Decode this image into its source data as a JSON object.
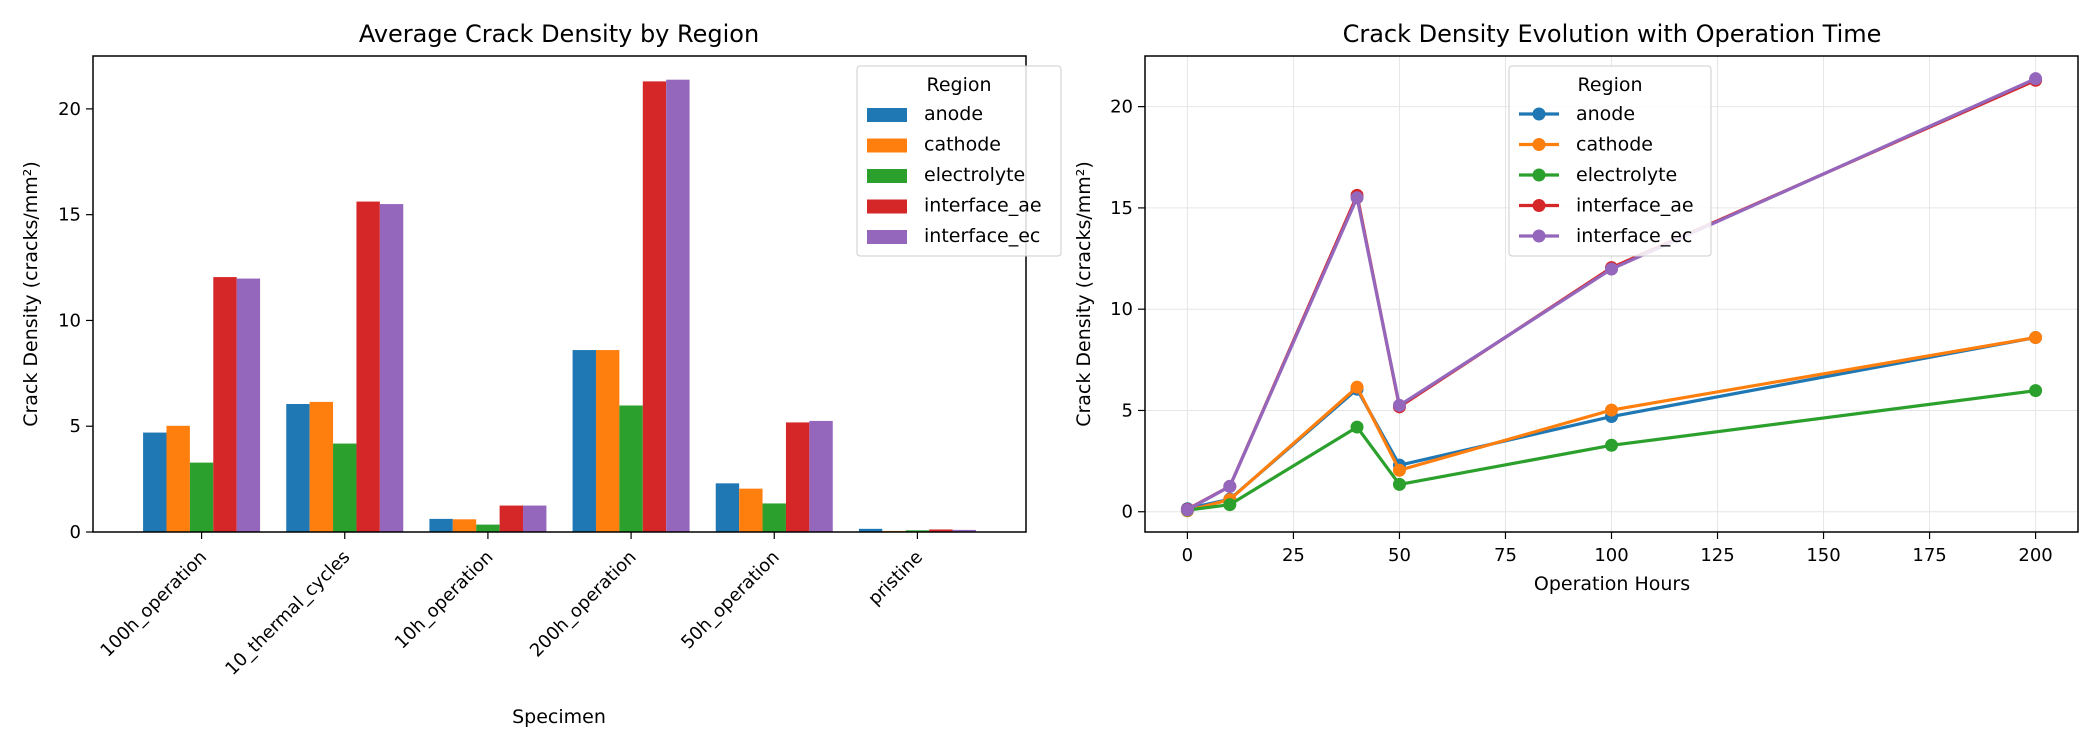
{
  "colors": {
    "anode": "#1f77b4",
    "cathode": "#ff7f0e",
    "electrolyte": "#2ca02c",
    "interface_ae": "#d62728",
    "interface_ec": "#9467bd"
  },
  "chart_data": [
    {
      "type": "bar",
      "title": "Average Crack Density by Region",
      "xlabel": "Specimen",
      "ylabel": "Crack Density (cracks/mm²)",
      "legend_title": "Region",
      "legend_position": "top-right",
      "grid": false,
      "ylim": [
        0,
        22.5
      ],
      "yticks": [
        0,
        5,
        10,
        15,
        20
      ],
      "categories": [
        "100h_operation",
        "10_thermal_cycles",
        "10h_operation",
        "200h_operation",
        "50h_operation",
        "pristine"
      ],
      "series": [
        {
          "name": "anode",
          "values": [
            4.7,
            6.05,
            0.62,
            8.6,
            2.3,
            0.15
          ]
        },
        {
          "name": "cathode",
          "values": [
            5.02,
            6.15,
            0.6,
            8.6,
            2.05,
            0.05
          ]
        },
        {
          "name": "electrolyte",
          "values": [
            3.28,
            4.18,
            0.35,
            5.98,
            1.35,
            0.08
          ]
        },
        {
          "name": "interface_ae",
          "values": [
            12.05,
            15.62,
            1.25,
            21.3,
            5.18,
            0.12
          ]
        },
        {
          "name": "interface_ec",
          "values": [
            11.98,
            15.5,
            1.25,
            21.38,
            5.25,
            0.1
          ]
        }
      ]
    },
    {
      "type": "line",
      "title": "Crack Density Evolution with Operation Time",
      "xlabel": "Operation Hours",
      "ylabel": "Crack Density (cracks/mm²)",
      "legend_title": "Region",
      "legend_position": "top-center",
      "grid": true,
      "xlim": [
        -10,
        210
      ],
      "ylim": [
        -1,
        22.5
      ],
      "xticks": [
        0,
        25,
        50,
        75,
        100,
        125,
        150,
        175,
        200
      ],
      "yticks": [
        0,
        5,
        10,
        15,
        20
      ],
      "x": [
        0,
        10,
        40,
        50,
        100,
        200
      ],
      "series": [
        {
          "name": "anode",
          "values": [
            0.15,
            0.62,
            6.05,
            2.3,
            4.7,
            8.6
          ]
        },
        {
          "name": "cathode",
          "values": [
            0.05,
            0.6,
            6.15,
            2.05,
            5.02,
            8.6
          ]
        },
        {
          "name": "electrolyte",
          "values": [
            0.08,
            0.35,
            4.18,
            1.35,
            3.28,
            5.98
          ]
        },
        {
          "name": "interface_ae",
          "values": [
            0.12,
            1.25,
            15.62,
            5.18,
            12.05,
            21.3
          ]
        },
        {
          "name": "interface_ec",
          "values": [
            0.1,
            1.25,
            15.5,
            5.25,
            11.98,
            21.38
          ]
        }
      ]
    }
  ]
}
